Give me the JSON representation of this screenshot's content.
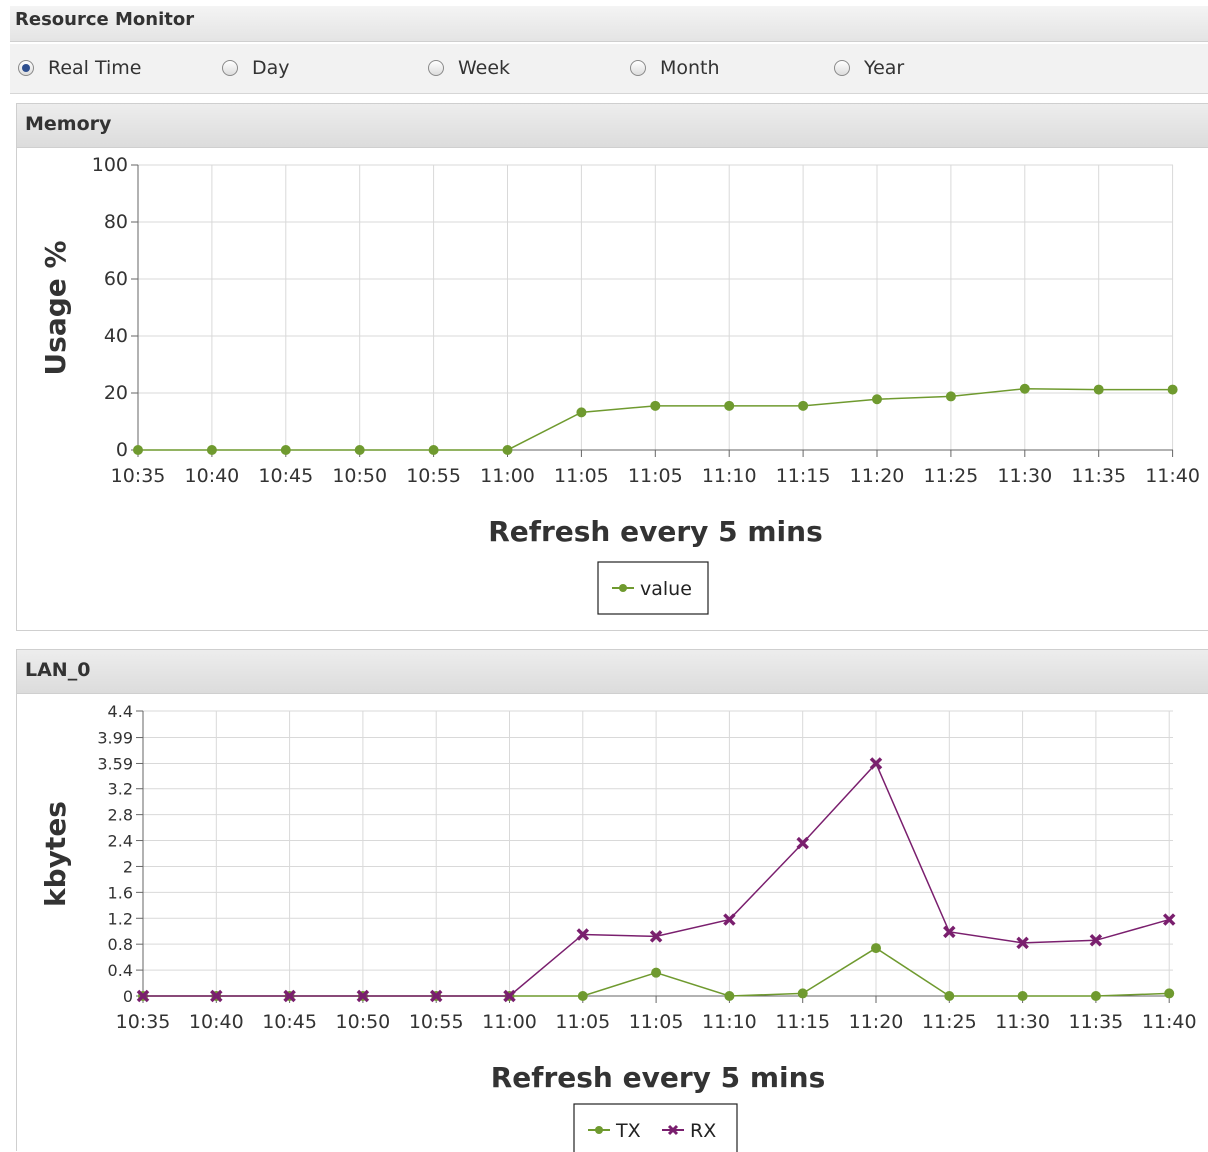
{
  "title": "Resource Monitor",
  "range_options": [
    {
      "label": "Real Time",
      "checked": true
    },
    {
      "label": "Day",
      "checked": false
    },
    {
      "label": "Week",
      "checked": false
    },
    {
      "label": "Month",
      "checked": false
    },
    {
      "label": "Year",
      "checked": false
    }
  ],
  "panels": [
    {
      "title": "Memory"
    },
    {
      "title": "LAN_0"
    }
  ],
  "chart_data": [
    {
      "type": "line",
      "title": "",
      "xlabel": "Refresh every 5 mins",
      "ylabel": "Usage %",
      "categories": [
        "10:35",
        "10:40",
        "10:45",
        "10:50",
        "10:55",
        "11:00",
        "11:05",
        "11:05",
        "11:10",
        "11:15",
        "11:20",
        "11:25",
        "11:30",
        "11:35",
        "11:40"
      ],
      "yticks": [
        "100",
        "80",
        "60",
        "40",
        "20",
        "0"
      ],
      "ylim": [
        0,
        100
      ],
      "grid": true,
      "legend_position": "bottom-center",
      "series": [
        {
          "name": "value",
          "color": "#6f9a2f",
          "marker": "circle",
          "values": [
            0,
            0,
            0,
            0,
            0,
            0,
            13.2,
            15.5,
            15.5,
            15.5,
            17.8,
            18.8,
            21.5,
            21.2,
            21.2
          ]
        }
      ]
    },
    {
      "type": "line",
      "title": "",
      "xlabel": "Refresh every 5 mins",
      "ylabel": "kbytes",
      "categories": [
        "10:35",
        "10:40",
        "10:45",
        "10:50",
        "10:55",
        "11:00",
        "11:05",
        "11:05",
        "11:10",
        "11:15",
        "11:20",
        "11:25",
        "11:30",
        "11:35",
        "11:40"
      ],
      "yticks": [
        "4.4",
        "3.99",
        "3.59",
        "3.2",
        "2.8",
        "2.4",
        "2",
        "1.6",
        "1.2",
        "0.8",
        "0.4",
        "0"
      ],
      "ylim": [
        0,
        4.4
      ],
      "grid": true,
      "legend_position": "bottom-center",
      "series": [
        {
          "name": "TX",
          "color": "#6f9a2f",
          "marker": "circle",
          "values": [
            0,
            0,
            0,
            0,
            0,
            0,
            0,
            0.36,
            0,
            0.04,
            0.74,
            0,
            0,
            0,
            0.04
          ]
        },
        {
          "name": "RX",
          "color": "#7a1f6e",
          "marker": "x",
          "values": [
            0,
            0,
            0,
            0,
            0,
            0,
            0.95,
            0.92,
            1.18,
            2.36,
            3.59,
            0.99,
            0.82,
            0.86,
            1.18
          ]
        }
      ]
    }
  ]
}
